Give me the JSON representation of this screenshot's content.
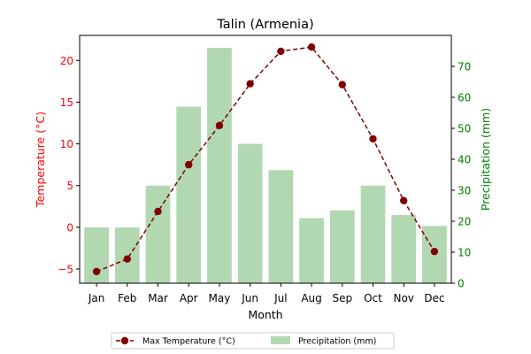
{
  "chart_data": {
    "type": "bar",
    "title": "Talin (Armenia)",
    "xlabel": "Month",
    "categories": [
      "Jan",
      "Feb",
      "Mar",
      "Apr",
      "May",
      "Jun",
      "Jul",
      "Aug",
      "Sep",
      "Oct",
      "Nov",
      "Dec"
    ],
    "left_axis": {
      "label": "Temperature (°C)",
      "ylim": [
        -6.7,
        23.0
      ],
      "ticks": [
        -5,
        0,
        5,
        10,
        15,
        20
      ],
      "color": "#ff0000"
    },
    "right_axis": {
      "label": "Precipitation (mm)",
      "ylim": [
        0,
        80
      ],
      "ticks": [
        0,
        10,
        20,
        30,
        40,
        50,
        60,
        70
      ],
      "color": "#008000"
    },
    "series": [
      {
        "name": "Max Temperature (°C)",
        "type": "line",
        "axis": "left",
        "color": "#800000",
        "line_style": "dashed",
        "marker": "circle",
        "values": [
          -5.3,
          -3.8,
          1.9,
          7.5,
          12.2,
          17.2,
          21.1,
          21.6,
          17.1,
          10.6,
          3.2,
          -2.9
        ]
      },
      {
        "name": "Precipitation (mm)",
        "type": "bar",
        "axis": "right",
        "color": "#b2d8b2",
        "values": [
          18,
          18,
          31.5,
          57,
          76,
          45,
          36.5,
          21,
          23.5,
          31.5,
          22,
          18.5
        ]
      }
    ],
    "legend": {
      "placement": "bottom-center",
      "entries": [
        "Max Temperature (°C)",
        "Precipitation (mm)"
      ]
    },
    "grid": false
  }
}
